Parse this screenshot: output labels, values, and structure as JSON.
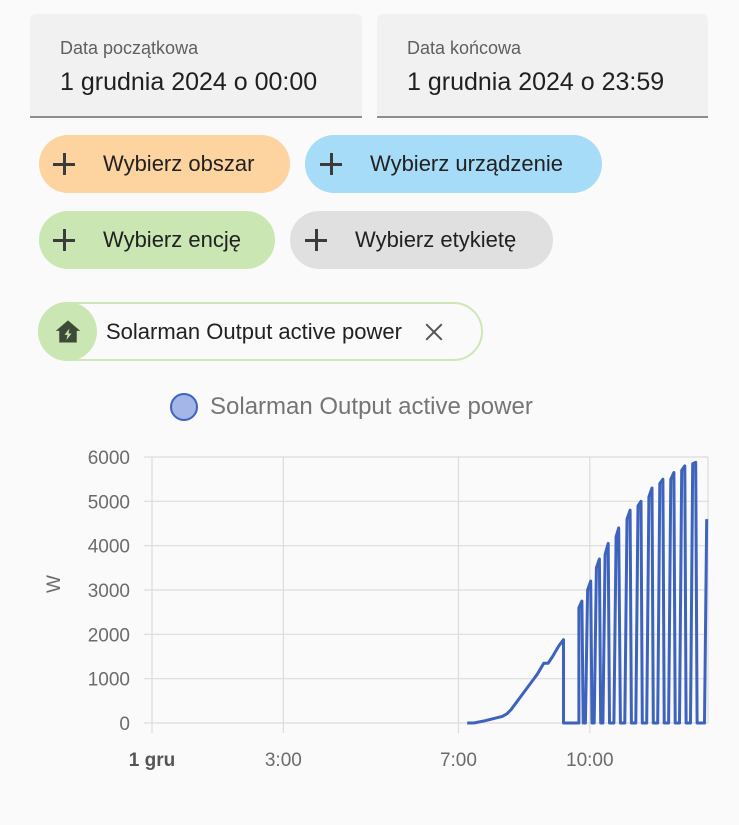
{
  "date_range": {
    "start_label": "Data początkowa",
    "start_value": "1 grudnia 2024 o 00:00",
    "end_label": "Data końcowa",
    "end_value": "1 grudnia 2024 o 23:59"
  },
  "target_picker": {
    "area": "Wybierz obszar",
    "device": "Wybierz urządzenie",
    "entity": "Wybierz encję",
    "label": "Wybierz etykietę"
  },
  "selected_entity": {
    "name": "Solarman Output active power",
    "icon": "home-lightning-icon"
  },
  "colors": {
    "series": "#3e63bd",
    "series_fill": "#a4b6e7",
    "area": "#fdd3a0",
    "device": "#a6dcf7",
    "entity": "#c9e6b3",
    "label": "#e0e0e0"
  },
  "chart_data": {
    "type": "line",
    "legend": [
      "Solarman Output active power"
    ],
    "legend_position": "top",
    "ylabel": "W",
    "ylim": [
      0,
      6000
    ],
    "yticks": [
      0,
      1000,
      2000,
      3000,
      4000,
      5000,
      6000
    ],
    "xlim_hours": [
      0,
      12.7
    ],
    "xticks": [
      {
        "hour": 0,
        "label": "1 gru",
        "bold": true
      },
      {
        "hour": 3,
        "label": "3:00",
        "bold": false
      },
      {
        "hour": 7,
        "label": "7:00",
        "bold": false
      },
      {
        "hour": 10,
        "label": "10:00",
        "bold": false
      }
    ],
    "grid": true,
    "series": [
      {
        "name": "Solarman Output active power",
        "points": [
          [
            7.2,
            0
          ],
          [
            7.35,
            0
          ],
          [
            7.6,
            50
          ],
          [
            7.85,
            110
          ],
          [
            8.0,
            150
          ],
          [
            8.1,
            200
          ],
          [
            8.2,
            300
          ],
          [
            8.35,
            500
          ],
          [
            8.5,
            700
          ],
          [
            8.65,
            900
          ],
          [
            8.8,
            1100
          ],
          [
            8.95,
            1350
          ],
          [
            9.05,
            1350
          ],
          [
            9.15,
            1500
          ],
          [
            9.3,
            1750
          ],
          [
            9.4,
            1880
          ],
          [
            9.4,
            0
          ],
          [
            9.75,
            0
          ],
          [
            9.75,
            2600
          ],
          [
            9.82,
            2750
          ],
          [
            9.85,
            0
          ],
          [
            9.9,
            0
          ],
          [
            9.95,
            3000
          ],
          [
            10.02,
            3200
          ],
          [
            10.05,
            0
          ],
          [
            10.1,
            0
          ],
          [
            10.15,
            3500
          ],
          [
            10.22,
            3700
          ],
          [
            10.25,
            0
          ],
          [
            10.3,
            0
          ],
          [
            10.35,
            3800
          ],
          [
            10.42,
            4050
          ],
          [
            10.45,
            0
          ],
          [
            10.55,
            0
          ],
          [
            10.6,
            4200
          ],
          [
            10.66,
            4400
          ],
          [
            10.7,
            0
          ],
          [
            10.8,
            0
          ],
          [
            10.85,
            4600
          ],
          [
            10.92,
            4800
          ],
          [
            10.95,
            0
          ],
          [
            11.05,
            0
          ],
          [
            11.1,
            4900
          ],
          [
            11.17,
            5000
          ],
          [
            11.2,
            0
          ],
          [
            11.3,
            0
          ],
          [
            11.35,
            5100
          ],
          [
            11.42,
            5300
          ],
          [
            11.45,
            0
          ],
          [
            11.55,
            0
          ],
          [
            11.6,
            5400
          ],
          [
            11.67,
            5500
          ],
          [
            11.7,
            0
          ],
          [
            11.8,
            0
          ],
          [
            11.85,
            5500
          ],
          [
            11.92,
            5650
          ],
          [
            11.95,
            0
          ],
          [
            12.05,
            0
          ],
          [
            12.1,
            5700
          ],
          [
            12.17,
            5800
          ],
          [
            12.2,
            0
          ],
          [
            12.3,
            0
          ],
          [
            12.35,
            5850
          ],
          [
            12.42,
            5880
          ],
          [
            12.45,
            0
          ],
          [
            12.62,
            0
          ],
          [
            12.67,
            4600
          ]
        ]
      }
    ]
  }
}
